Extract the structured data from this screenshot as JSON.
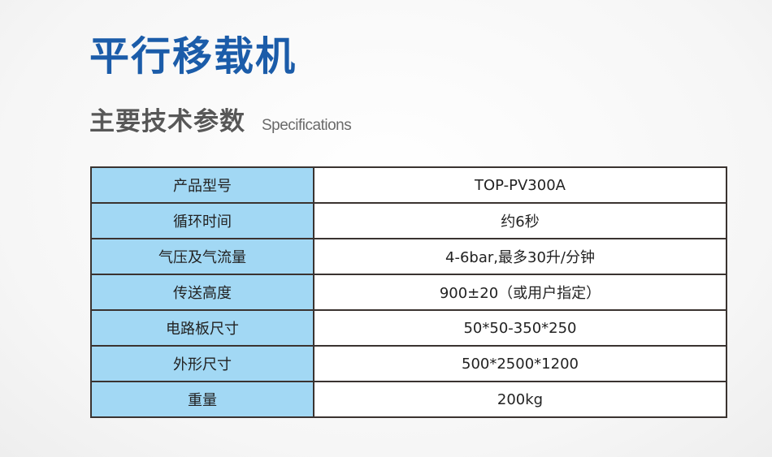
{
  "title": "平行移载机",
  "subtitle": {
    "cn": "主要技术参数",
    "en": "Specifications"
  },
  "specs": [
    {
      "label": "产品型号",
      "value": "TOP-PV300A"
    },
    {
      "label": "循环时间",
      "value": "约6秒"
    },
    {
      "label": "气压及气流量",
      "value": "4-6bar,最多30升/分钟"
    },
    {
      "label": "传送高度",
      "value": "900±20（或用户指定）"
    },
    {
      "label": "电路板尺寸",
      "value": "50*50-350*250"
    },
    {
      "label": "外形尺寸",
      "value": "500*2500*1200"
    },
    {
      "label": "重量",
      "value": "200kg"
    }
  ],
  "colors": {
    "title": "#1b5ca9",
    "label_cell": "#a2d8f4"
  }
}
